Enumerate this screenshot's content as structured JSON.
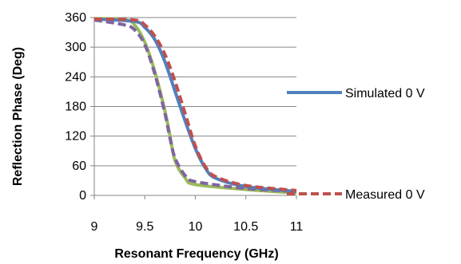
{
  "chart_data": {
    "type": "line",
    "title": "",
    "xlabel": "Resonant Frequency (GHz)",
    "ylabel": "Reflection Phase (Deg)",
    "xlim": [
      9,
      11
    ],
    "ylim": [
      0,
      360
    ],
    "xticks": [
      "9",
      "9.5",
      "10",
      "10.5",
      "11"
    ],
    "yticks": [
      "0",
      "60",
      "120",
      "180",
      "240",
      "300",
      "360"
    ],
    "grid": "horizontal",
    "legend_position": "right",
    "series": [
      {
        "name": "Simulated 0 V",
        "color": "#4F81BD",
        "style": "solid",
        "show_in_legend": true,
        "x": [
          9.0,
          9.4,
          9.5,
          9.6,
          9.7,
          9.8,
          9.9,
          10.0,
          10.1,
          10.2,
          10.5,
          11.0
        ],
        "y": [
          357,
          352,
          340,
          315,
          270,
          210,
          150,
          95,
          55,
          35,
          18,
          8
        ]
      },
      {
        "name": "Measured 0 V",
        "color": "#C0504D",
        "style": "dashed",
        "show_in_legend": true,
        "x": [
          9.0,
          9.4,
          9.5,
          9.6,
          9.7,
          9.8,
          9.9,
          10.0,
          10.1,
          10.2,
          10.5,
          11.0
        ],
        "y": [
          357,
          355,
          345,
          322,
          285,
          230,
          165,
          100,
          58,
          38,
          20,
          10
        ]
      },
      {
        "name": "",
        "color": "#9BBB59",
        "style": "solid",
        "show_in_legend": false,
        "x": [
          9.0,
          9.3,
          9.4,
          9.5,
          9.6,
          9.7,
          9.75,
          9.8,
          9.9,
          10.0,
          10.5,
          11.0
        ],
        "y": [
          358,
          356,
          345,
          310,
          250,
          170,
          120,
          70,
          35,
          22,
          12,
          5
        ]
      },
      {
        "name": "",
        "color": "#8064A2",
        "style": "dashed",
        "show_in_legend": false,
        "x": [
          9.0,
          9.3,
          9.4,
          9.5,
          9.6,
          9.7,
          9.75,
          9.8,
          9.9,
          10.0,
          10.5,
          11.0
        ],
        "y": [
          355,
          345,
          335,
          305,
          245,
          165,
          115,
          75,
          40,
          28,
          14,
          8
        ]
      }
    ]
  }
}
